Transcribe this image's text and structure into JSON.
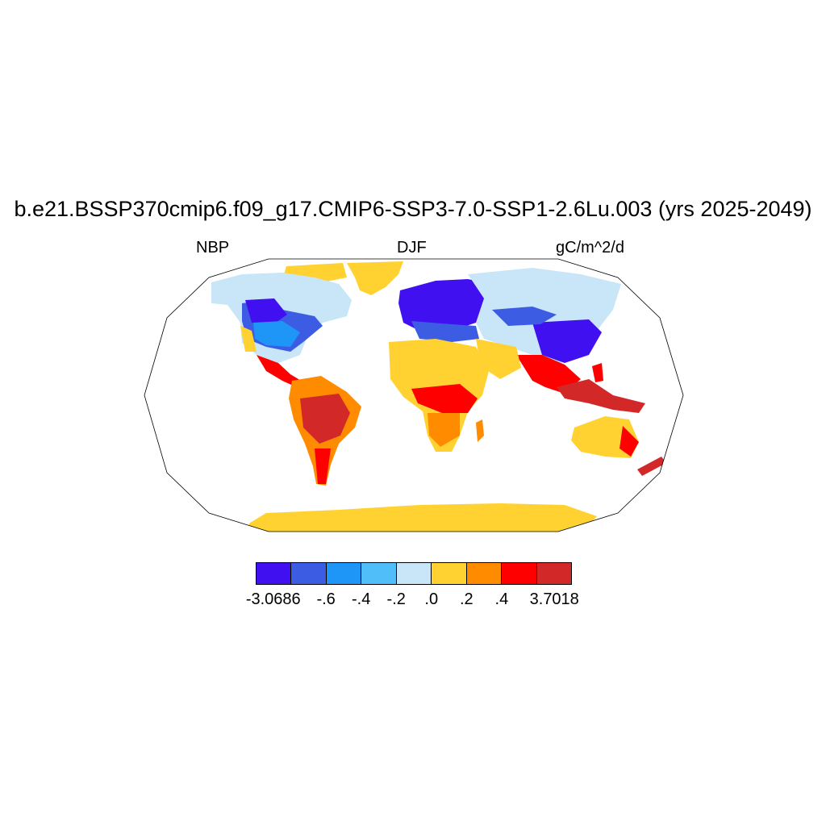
{
  "title": "b.e21.BSSP370cmip6.f09_g17.CMIP6-SSP3-7.0-SSP1-2.6Lu.003 (yrs 2025-2049)",
  "left_label": "NBP",
  "center_label": "DJF",
  "right_label": "gC/m^2/d",
  "chart_data": {
    "type": "heatmap",
    "projection": "robinson",
    "variable": "NBP",
    "season": "DJF",
    "units": "gC/m^2/d",
    "colorbar": {
      "colors": [
        "#4010f0",
        "#3c5ce4",
        "#1e96f8",
        "#50bef8",
        "#c8e6f8",
        "#ffd232",
        "#ff8c00",
        "#ff0000",
        "#d22828"
      ],
      "tick_labels": [
        "-3.0686",
        "-.6",
        "-.4",
        "-.2",
        ".0",
        ".2",
        ".4",
        "3.7018"
      ],
      "min": -3.0686,
      "max": 3.7018,
      "levels": [
        -0.6,
        -0.4,
        -0.2,
        0.0,
        0.2,
        0.4
      ]
    }
  }
}
